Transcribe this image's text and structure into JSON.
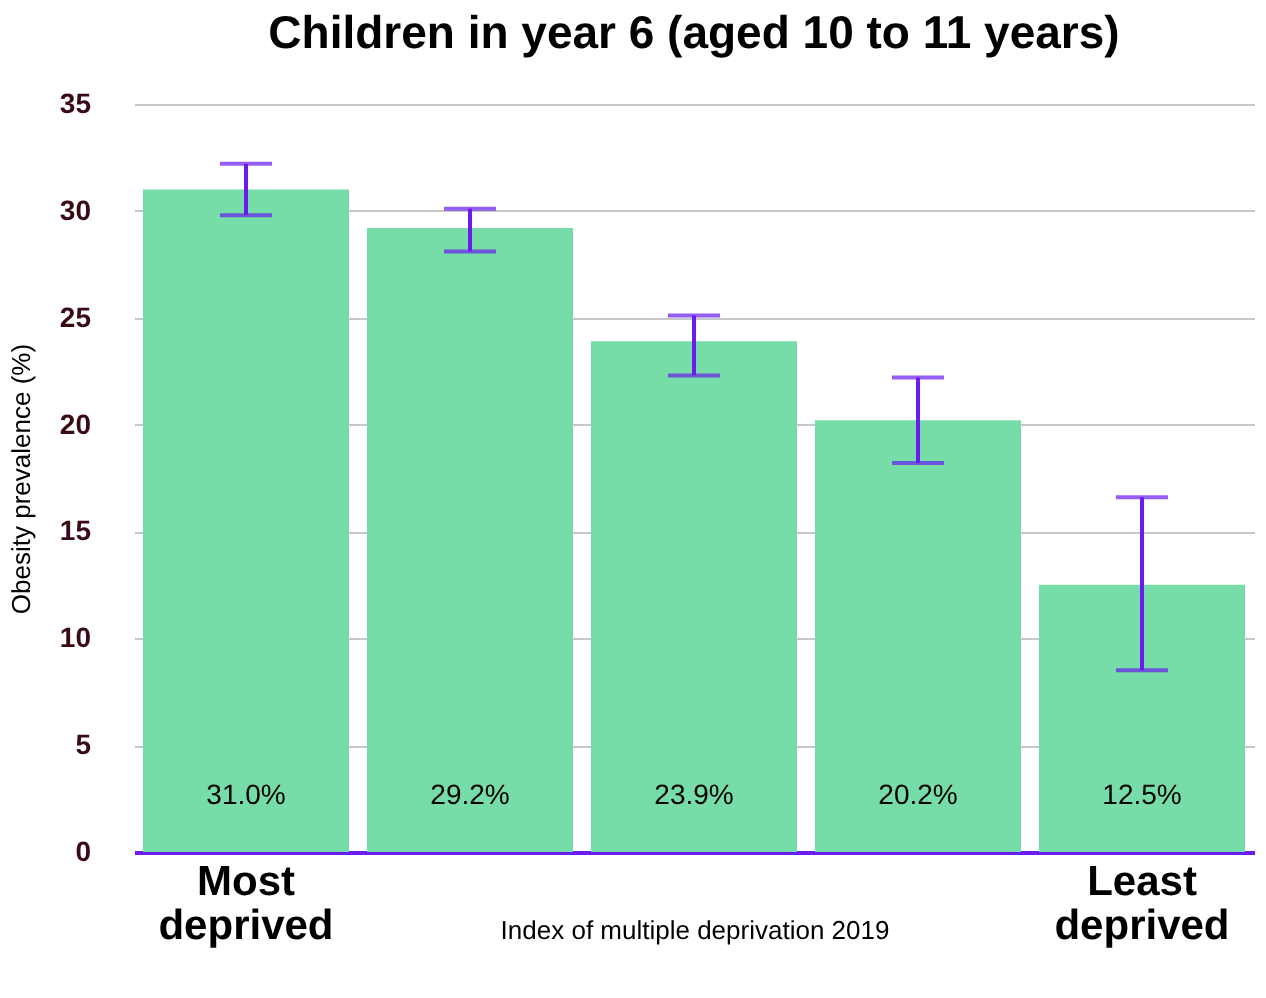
{
  "chart_data": {
    "type": "bar",
    "title": "Children in year 6 (aged 10 to 11 years)",
    "xlabel": "Index of multiple deprivation 2019",
    "ylabel": "Obesity prevalence (%)",
    "categories": [
      "Most deprived",
      null,
      null,
      null,
      "Least deprived"
    ],
    "values": [
      31.0,
      29.2,
      23.9,
      20.2,
      12.5
    ],
    "value_labels": [
      "31.0%",
      "29.2%",
      "23.9%",
      "20.2%",
      "12.5%"
    ],
    "errors": [
      [
        29.8,
        32.2
      ],
      [
        28.1,
        30.1
      ],
      [
        22.3,
        25.1
      ],
      [
        18.2,
        22.2
      ],
      [
        8.5,
        16.6
      ]
    ],
    "color": "#77dda8",
    "ylim": [
      0,
      35
    ],
    "yticks": [
      0,
      5,
      10,
      15,
      20,
      25,
      30,
      35
    ],
    "grid": "y"
  }
}
